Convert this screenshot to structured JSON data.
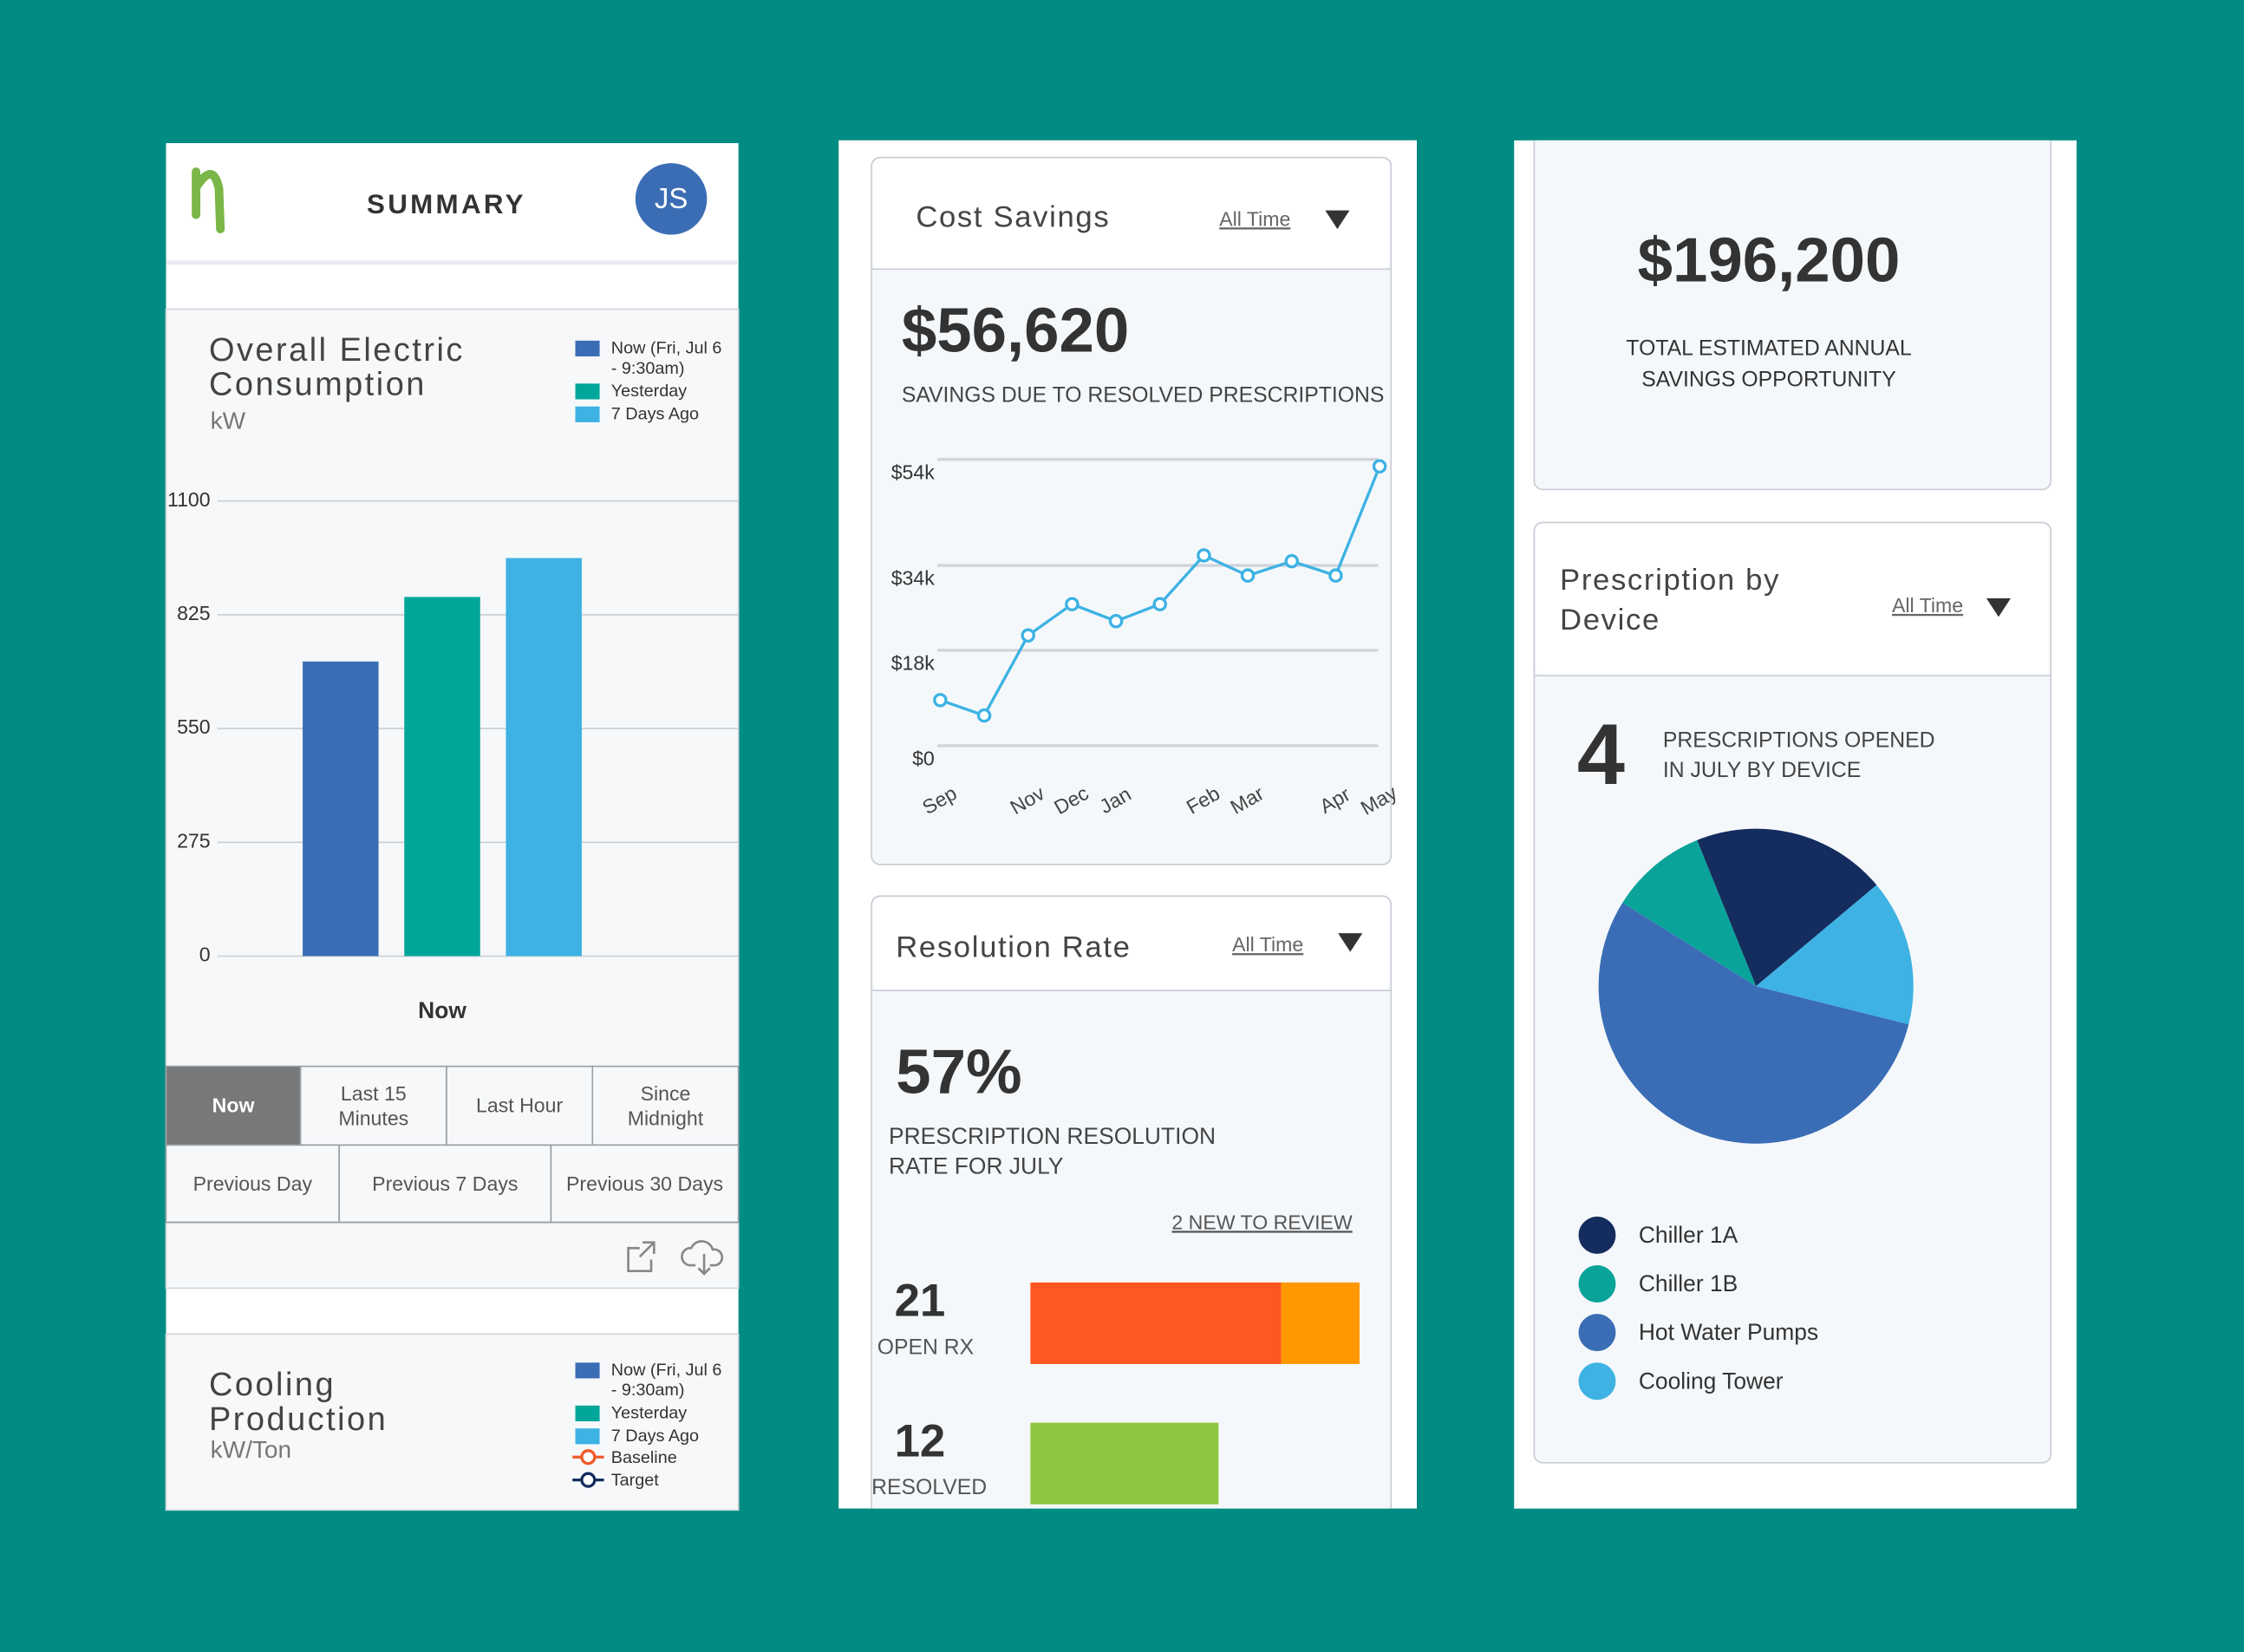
{
  "header": {
    "title": "SUMMARY",
    "avatar": "JS"
  },
  "electric": {
    "title": "Overall Electric Consumption",
    "unit": "kW",
    "type": "bar",
    "categories": [
      "Now"
    ],
    "series": [
      {
        "name": "Now (Fri, Jul 6 - 9:30am)",
        "color": "#3b6db5",
        "values": [
          712
        ]
      },
      {
        "name": "Yesterday",
        "color": "#00a69a",
        "values": [
          868
        ]
      },
      {
        "name": "7 Days Ago",
        "color": "#3db2e3",
        "values": [
          962
        ]
      }
    ],
    "ylim": [
      0,
      1100
    ],
    "yticks": [
      0,
      275,
      550,
      825,
      1100
    ],
    "grid": true
  },
  "ranges": {
    "options": [
      "Now",
      "Last 15 Minutes",
      "Last Hour",
      "Since Midnight",
      "Previous Day",
      "Previous 7 Days",
      "Previous 30 Days"
    ],
    "selected": 0
  },
  "cooling": {
    "title": "Cooling Production",
    "unit": "kW/Ton",
    "legend": [
      {
        "name": "Now (Fri, Jul 6 - 9:30am)",
        "color": "#3b6db5",
        "marker": "square"
      },
      {
        "name": "Yesterday",
        "color": "#00a69a",
        "marker": "square"
      },
      {
        "name": "7 Days Ago",
        "color": "#3db2e3",
        "marker": "square"
      },
      {
        "name": "Baseline",
        "color": "#f05a28",
        "marker": "line"
      },
      {
        "name": "Target",
        "color": "#142c5e",
        "marker": "line"
      }
    ]
  },
  "cost_savings": {
    "title": "Cost Savings",
    "filter": "All Time",
    "value": "$56,620",
    "caption": "SAVINGS DUE TO RESOLVED PRESCRIPTIONS",
    "chart": {
      "type": "line",
      "color": "#3db2e3",
      "categories": [
        "Sep",
        null,
        "Nov",
        "Dec",
        "Jan",
        null,
        "Feb",
        "Mar",
        null,
        "Apr",
        "May"
      ],
      "values": [
        8600,
        5700,
        20800,
        26700,
        23500,
        26700,
        35900,
        32100,
        34800,
        32100,
        52700
      ],
      "ylim": [
        0,
        54000
      ],
      "yticks": [
        {
          "value": 0,
          "label": "$0"
        },
        {
          "value": 18000,
          "label": "$18k"
        },
        {
          "value": 34000,
          "label": "$34k"
        },
        {
          "value": 54000,
          "label": "$54k"
        }
      ],
      "grid": true
    }
  },
  "resolution": {
    "title": "Resolution Rate",
    "filter": "All Time",
    "value": "57%",
    "caption": "PRESCRIPTION RESOLUTION RATE FOR JULY",
    "link": "2 NEW TO REVIEW",
    "xlim": [
      0,
      21
    ],
    "rows": [
      {
        "count": 21,
        "label": "OPEN RX",
        "segments": [
          {
            "value": 16,
            "color": "#ff5722"
          },
          {
            "value": 5,
            "color": "#ff9800"
          }
        ]
      },
      {
        "count": 12,
        "label": "RESOLVED",
        "segments": [
          {
            "value": 12,
            "color": "#8dc63f"
          }
        ]
      }
    ]
  },
  "opportunity": {
    "value": "$196,200",
    "caption": "TOTAL ESTIMATED ANNUAL SAVINGS OPPORTUNITY"
  },
  "device": {
    "title": "Prescription by Device",
    "filter": "All Time",
    "count": 4,
    "caption": "PRESCRIPTIONS OPENED IN JULY BY DEVICE",
    "chart": {
      "type": "pie",
      "categories": [
        "Chiller 1A",
        "Chiller 1B",
        "Hot Water Pumps",
        "Cooling Tower"
      ],
      "colors": [
        "#142c5e",
        "#0aa39a",
        "#3a6db5",
        "#3db2e3"
      ],
      "values": [
        20,
        10,
        55,
        15
      ]
    }
  }
}
